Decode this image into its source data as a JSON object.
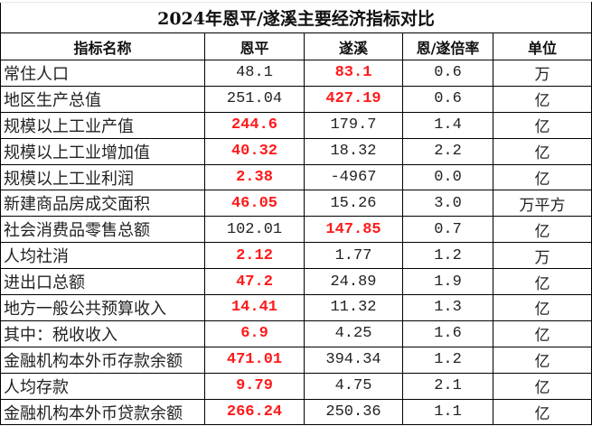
{
  "title": "2024年恩平/遂溪主要经济指标对比",
  "headers": [
    "指标名称",
    "恩平",
    "遂溪",
    "恩/遂倍率",
    "单位"
  ],
  "highlight_color": "#ff1a1a",
  "rows": [
    {
      "name": "常住人口",
      "enping": "48.1",
      "suixi": "83.1",
      "ratio": "0.6",
      "unit": "万",
      "hl": "suixi"
    },
    {
      "name": "地区生产总值",
      "enping": "251.04",
      "suixi": "427.19",
      "ratio": "0.6",
      "unit": "亿",
      "hl": "suixi"
    },
    {
      "name": "规模以上工业产值",
      "enping": "244.6",
      "suixi": "179.7",
      "ratio": "1.4",
      "unit": "亿",
      "hl": "enping"
    },
    {
      "name": "规模以上工业增加值",
      "enping": "40.32",
      "suixi": "18.32",
      "ratio": "2.2",
      "unit": "亿",
      "hl": "enping"
    },
    {
      "name": "规模以上工业利润",
      "enping": "2.38",
      "suixi": "-4967",
      "ratio": "0.0",
      "unit": "亿",
      "hl": "enping"
    },
    {
      "name": "新建商品房成交面积",
      "enping": "46.05",
      "suixi": "15.26",
      "ratio": "3.0",
      "unit": "万平方",
      "hl": "enping"
    },
    {
      "name": "社会消费品零售总额",
      "enping": "102.01",
      "suixi": "147.85",
      "ratio": "0.7",
      "unit": "亿",
      "hl": "suixi"
    },
    {
      "name": "人均社消",
      "enping": "2.12",
      "suixi": "1.77",
      "ratio": "1.2",
      "unit": "万",
      "hl": "enping"
    },
    {
      "name": "进出口总额",
      "enping": "47.2",
      "suixi": "24.89",
      "ratio": "1.9",
      "unit": "亿",
      "hl": "enping"
    },
    {
      "name": "地方一般公共预算收入",
      "enping": "14.41",
      "suixi": "11.32",
      "ratio": "1.3",
      "unit": "亿",
      "hl": "enping"
    },
    {
      "name": "其中：税收收入",
      "enping": "6.9",
      "suixi": "4.25",
      "ratio": "1.6",
      "unit": "亿",
      "hl": "enping"
    },
    {
      "name": "金融机构本外币存款余额",
      "enping": "471.01",
      "suixi": "394.34",
      "ratio": "1.2",
      "unit": "亿",
      "hl": "enping"
    },
    {
      "name": "人均存款",
      "enping": "9.79",
      "suixi": "4.75",
      "ratio": "2.1",
      "unit": "亿",
      "hl": "enping"
    },
    {
      "name": "金融机构本外币贷款余额",
      "enping": "266.24",
      "suixi": "250.36",
      "ratio": "1.1",
      "unit": "亿",
      "hl": "enping"
    }
  ]
}
